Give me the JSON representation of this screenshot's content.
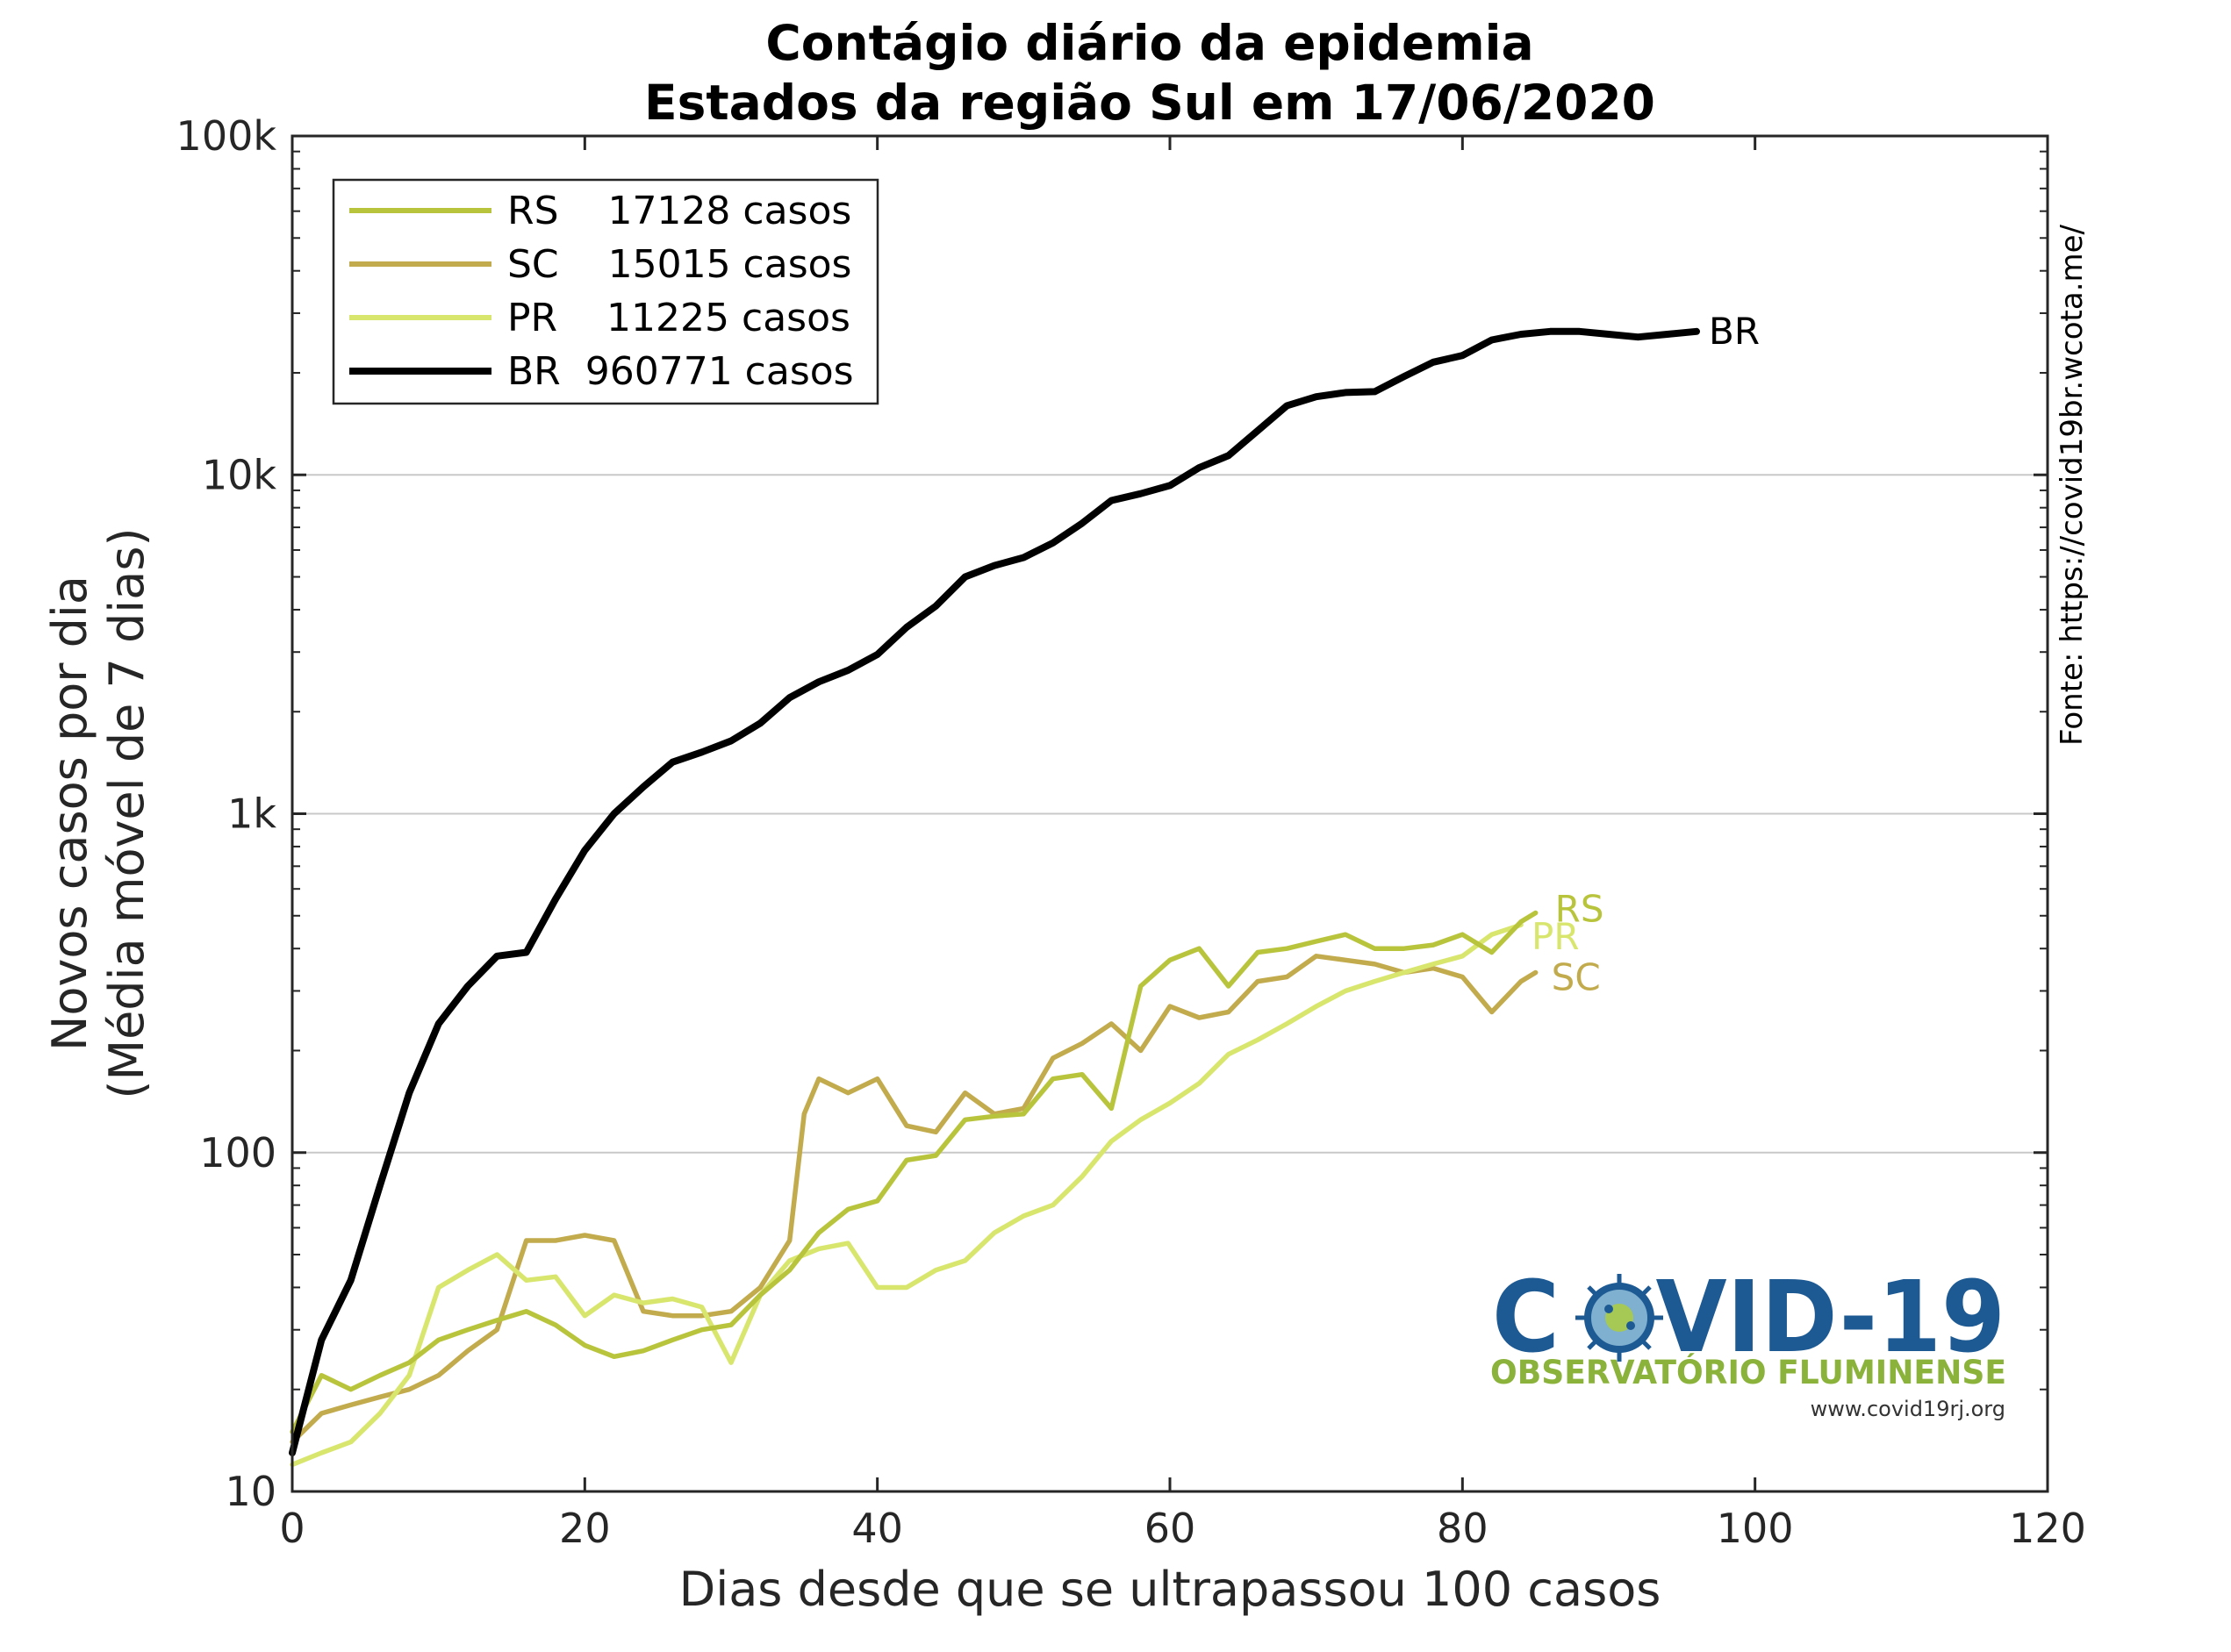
{
  "colors": {
    "RS": "#b9c43d",
    "SC": "#c2ab4d",
    "PR": "#d8e66e",
    "BR": "#000000",
    "grid": "#c8c8c8"
  },
  "chart_data": {
    "type": "line",
    "title": "Contágio diário da epidemia",
    "subtitle": "Estados da região Sul em 17/06/2020",
    "xlabel": "Dias desde que se ultrapassou 100 casos",
    "ylabel_line1": "Novos casos por dia",
    "ylabel_line2": "(Média móvel de 7 dias)",
    "xlim": [
      0,
      120
    ],
    "ylim": [
      10,
      100000
    ],
    "yscale": "log",
    "x_ticks": [
      "0",
      "20",
      "40",
      "60",
      "80",
      "100",
      "120"
    ],
    "y_ticks": [
      "10",
      "100",
      "1k",
      "10k",
      "100k"
    ],
    "grid": "horizontal, major decades",
    "legend_position": "top-left",
    "source": "Fonte: https://covid19br.wcota.me/",
    "series": [
      {
        "key": "RS",
        "name": "RS",
        "legend": "RS    17128 casos",
        "end_label": "RS",
        "x": [
          0,
          2,
          4,
          6,
          8,
          10,
          12,
          14,
          16,
          18,
          20,
          22,
          24,
          26,
          28,
          30,
          32,
          34,
          36,
          38,
          40,
          42,
          44,
          46,
          48,
          50,
          52,
          54,
          56,
          58,
          60,
          62,
          64,
          66,
          68,
          70,
          72,
          74,
          76,
          78,
          80,
          82,
          84,
          85
        ],
        "y": [
          15,
          22,
          20,
          22,
          24,
          28,
          30,
          32,
          34,
          31,
          27,
          25,
          26,
          28,
          30,
          31,
          38,
          45,
          58,
          68,
          72,
          95,
          98,
          125,
          128,
          130,
          165,
          170,
          135,
          310,
          370,
          400,
          310,
          390,
          400,
          420,
          440,
          400,
          400,
          410,
          440,
          390,
          480,
          510
        ]
      },
      {
        "key": "SC",
        "name": "SC",
        "legend": "SC    15015 casos",
        "end_label": "SC",
        "x": [
          0,
          2,
          4,
          6,
          8,
          10,
          12,
          14,
          16,
          18,
          20,
          22,
          24,
          26,
          28,
          30,
          32,
          34,
          35,
          36,
          38,
          40,
          42,
          44,
          46,
          48,
          50,
          52,
          54,
          56,
          58,
          60,
          62,
          64,
          66,
          68,
          70,
          72,
          74,
          76,
          78,
          80,
          82,
          84,
          85
        ],
        "y": [
          14,
          17,
          18,
          19,
          20,
          22,
          26,
          30,
          55,
          55,
          57,
          55,
          34,
          33,
          33,
          34,
          40,
          55,
          130,
          165,
          150,
          165,
          120,
          115,
          150,
          130,
          135,
          190,
          210,
          240,
          200,
          270,
          250,
          260,
          320,
          330,
          380,
          370,
          360,
          340,
          350,
          330,
          260,
          320,
          340
        ]
      },
      {
        "key": "PR",
        "name": "PR",
        "legend": "PR    11225 casos",
        "end_label": "PR",
        "x": [
          0,
          2,
          4,
          6,
          8,
          10,
          12,
          14,
          16,
          18,
          20,
          22,
          24,
          26,
          28,
          30,
          32,
          34,
          36,
          38,
          40,
          42,
          44,
          46,
          48,
          50,
          52,
          54,
          56,
          58,
          60,
          62,
          64,
          66,
          68,
          70,
          72,
          74,
          76,
          78,
          80,
          82,
          84
        ],
        "y": [
          12,
          13,
          14,
          17,
          22,
          40,
          45,
          50,
          42,
          43,
          33,
          38,
          36,
          37,
          35,
          24,
          38,
          48,
          52,
          54,
          40,
          40,
          45,
          48,
          58,
          65,
          70,
          85,
          108,
          125,
          140,
          160,
          195,
          215,
          240,
          270,
          300,
          320,
          340,
          360,
          380,
          440,
          470
        ]
      },
      {
        "key": "BR",
        "name": "BR",
        "legend": "BR  960771 casos",
        "end_label": "BR",
        "x": [
          0,
          2,
          4,
          6,
          8,
          10,
          12,
          14,
          16,
          18,
          20,
          22,
          24,
          26,
          28,
          30,
          32,
          34,
          36,
          38,
          40,
          42,
          44,
          46,
          48,
          50,
          52,
          54,
          56,
          58,
          60,
          62,
          64,
          66,
          68,
          70,
          72,
          74,
          76,
          78,
          80,
          82,
          84,
          86,
          88,
          90,
          92,
          94,
          96
        ],
        "y": [
          13,
          28,
          42,
          80,
          150,
          240,
          310,
          380,
          390,
          560,
          780,
          1000,
          1200,
          1420,
          1520,
          1640,
          1850,
          2200,
          2450,
          2650,
          2950,
          3550,
          4100,
          5000,
          5400,
          5700,
          6300,
          7200,
          8400,
          8800,
          9300,
          10500,
          11400,
          13500,
          16000,
          17000,
          17500,
          17600,
          19500,
          21500,
          22500,
          25000,
          26000,
          26500,
          26500,
          26000,
          25500,
          26000,
          26500
        ]
      }
    ]
  },
  "logo": {
    "title": "COVID-19",
    "subtitle": "OBSERVATÓRIO FLUMINENSE",
    "url": "www.covid19rj.org"
  }
}
